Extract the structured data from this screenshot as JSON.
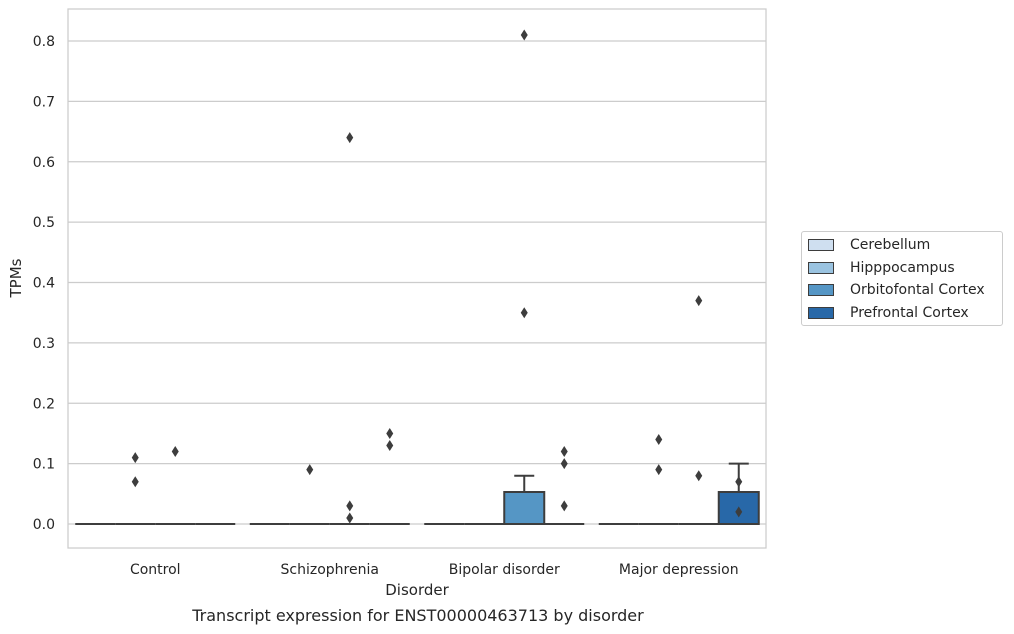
{
  "chart_data": {
    "type": "box",
    "xlabel": "Disorder",
    "ylabel": "TPMs",
    "ylim": [
      -0.04,
      0.85
    ],
    "yticks": [
      "0.0",
      "0.1",
      "0.2",
      "0.3",
      "0.4",
      "0.5",
      "0.6",
      "0.7",
      "0.8"
    ],
    "ytick_values": [
      0,
      0.1,
      0.2,
      0.3,
      0.4,
      0.5,
      0.6,
      0.7,
      0.8
    ],
    "grid": true,
    "legend_placement": "right",
    "categories": [
      "Control",
      "Schizophrenia",
      "Bipolar disorder",
      "Major depression"
    ],
    "series": [
      {
        "name": "Cerebellum",
        "color": "#cfdff0",
        "boxes": [
          {
            "q1": 0,
            "median": 0,
            "q3": 0,
            "whislo": 0,
            "whishi": 0,
            "fliers": []
          },
          {
            "q1": 0,
            "median": 0,
            "q3": 0,
            "whislo": 0,
            "whishi": 0,
            "fliers": []
          },
          {
            "q1": 0,
            "median": 0,
            "q3": 0,
            "whislo": 0,
            "whishi": 0,
            "fliers": []
          },
          {
            "q1": 0,
            "median": 0,
            "q3": 0,
            "whislo": 0,
            "whishi": 0,
            "fliers": []
          }
        ]
      },
      {
        "name": "Hipppocampus",
        "color": "#9ac3e0",
        "boxes": [
          {
            "q1": 0,
            "median": 0,
            "q3": 0,
            "whislo": 0,
            "whishi": 0,
            "fliers": [
              0.07,
              0.11
            ]
          },
          {
            "q1": 0,
            "median": 0,
            "q3": 0,
            "whislo": 0,
            "whishi": 0,
            "fliers": [
              0.09
            ]
          },
          {
            "q1": 0,
            "median": 0,
            "q3": 0,
            "whislo": 0,
            "whishi": 0,
            "fliers": []
          },
          {
            "q1": 0,
            "median": 0,
            "q3": 0,
            "whislo": 0,
            "whishi": 0,
            "fliers": [
              0.09,
              0.14
            ]
          }
        ]
      },
      {
        "name": "Orbitofontal Cortex",
        "color": "#5596c5",
        "boxes": [
          {
            "q1": 0,
            "median": 0,
            "q3": 0,
            "whislo": 0,
            "whishi": 0,
            "fliers": [
              0.12
            ]
          },
          {
            "q1": 0,
            "median": 0,
            "q3": 0,
            "whislo": 0,
            "whishi": 0,
            "fliers": [
              0.01,
              0.03,
              0.64
            ]
          },
          {
            "q1": 0,
            "median": 0,
            "q3": 0.053,
            "whislo": 0,
            "whishi": 0.08,
            "fliers": [
              0.35,
              0.81
            ]
          },
          {
            "q1": 0,
            "median": 0,
            "q3": 0,
            "whislo": 0,
            "whishi": 0,
            "fliers": [
              0.08,
              0.37
            ]
          }
        ]
      },
      {
        "name": "Prefrontal Cortex",
        "color": "#2868a8",
        "boxes": [
          {
            "q1": 0,
            "median": 0,
            "q3": 0,
            "whislo": 0,
            "whishi": 0,
            "fliers": []
          },
          {
            "q1": 0,
            "median": 0,
            "q3": 0,
            "whislo": 0,
            "whishi": 0,
            "fliers": [
              0.13,
              0.15
            ]
          },
          {
            "q1": 0,
            "median": 0,
            "q3": 0,
            "whislo": 0,
            "whishi": 0,
            "fliers": [
              0.03,
              0.1,
              0.12
            ]
          },
          {
            "q1": 0,
            "median": 0,
            "q3": 0.053,
            "whislo": 0,
            "whishi": 0.1,
            "fliers": [
              0.02,
              0.07
            ]
          }
        ]
      }
    ]
  },
  "caption": "Transcript expression for ENST00000463713 by disorder"
}
